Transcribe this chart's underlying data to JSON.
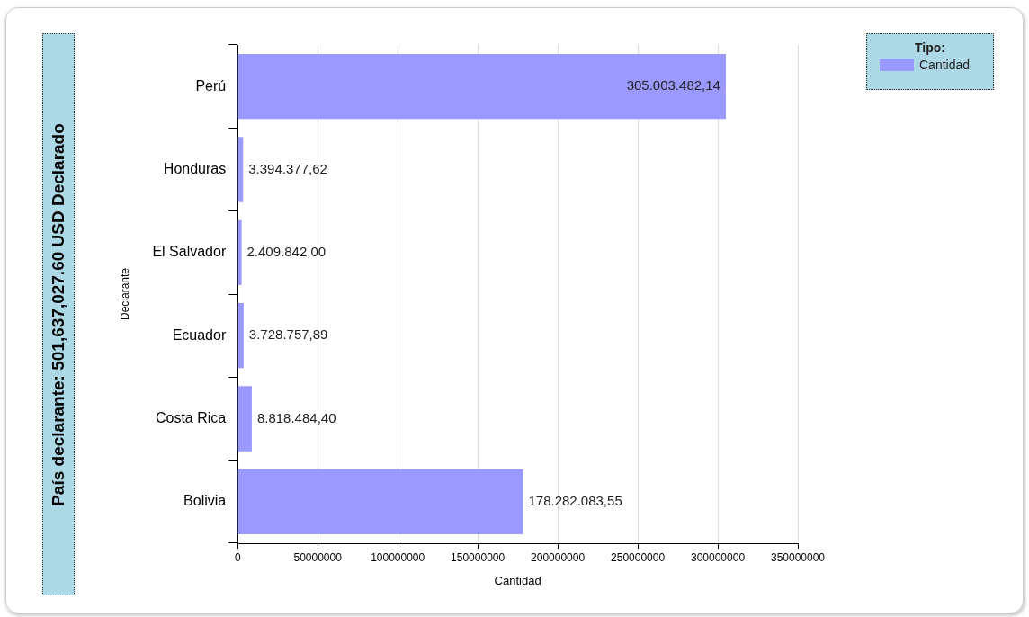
{
  "chart_data": {
    "type": "bar",
    "orientation": "horizontal",
    "title": "País declarante: 501,637,027.60 USD Declarado",
    "xlabel": "Cantidad",
    "ylabel": "Declarante",
    "legend_title": "Tipo:",
    "legend": "top right",
    "grid": "x",
    "categories": [
      "Perú",
      "Honduras",
      "El Salvador",
      "Ecuador",
      "Costa Rica",
      "Bolivia"
    ],
    "series": [
      {
        "name": "Cantidad",
        "color": "#9999ff",
        "values": [
          305003482.14,
          3394377.62,
          2409842.0,
          3728757.89,
          8818484.4,
          178282083.55
        ],
        "value_labels": [
          "305.003.482,14",
          "3.394.377,62",
          "2.409.842,00",
          "3.728.757,89",
          "8.818.484,40",
          "178.282.083,55"
        ]
      }
    ],
    "xlim": [
      0,
      350000000
    ],
    "xticks": [
      0,
      50000000,
      100000000,
      150000000,
      200000000,
      250000000,
      300000000,
      350000000
    ]
  }
}
